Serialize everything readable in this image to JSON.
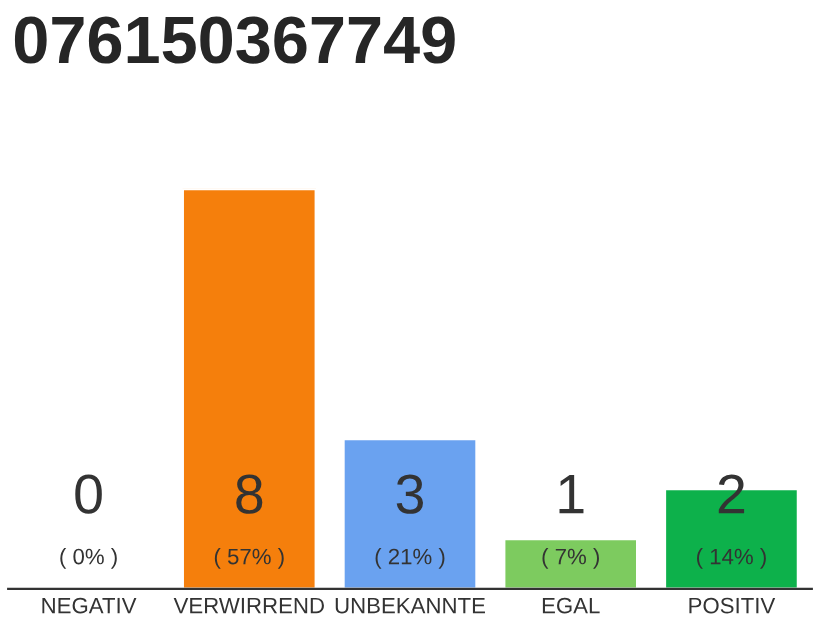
{
  "chart_data": {
    "type": "bar",
    "title": "076150367749",
    "categories": [
      "NEGATIV",
      "VERWIRREND",
      "UNBEKANNTE",
      "EGAL",
      "POSITIV"
    ],
    "values": [
      0,
      8,
      3,
      1,
      2
    ],
    "colors": [
      null,
      "#f57f0c",
      "#6aa2f0",
      "#7dcb5f",
      "#0db14b"
    ],
    "ylim": [
      0,
      8
    ],
    "tick_labels": "x",
    "grid": false,
    "legend": false,
    "value_labels": [
      "0\n( 0% )",
      "8\n( 57% )",
      "3\n( 21% )",
      "1\n( 7% )",
      "2\n( 14% )"
    ]
  }
}
